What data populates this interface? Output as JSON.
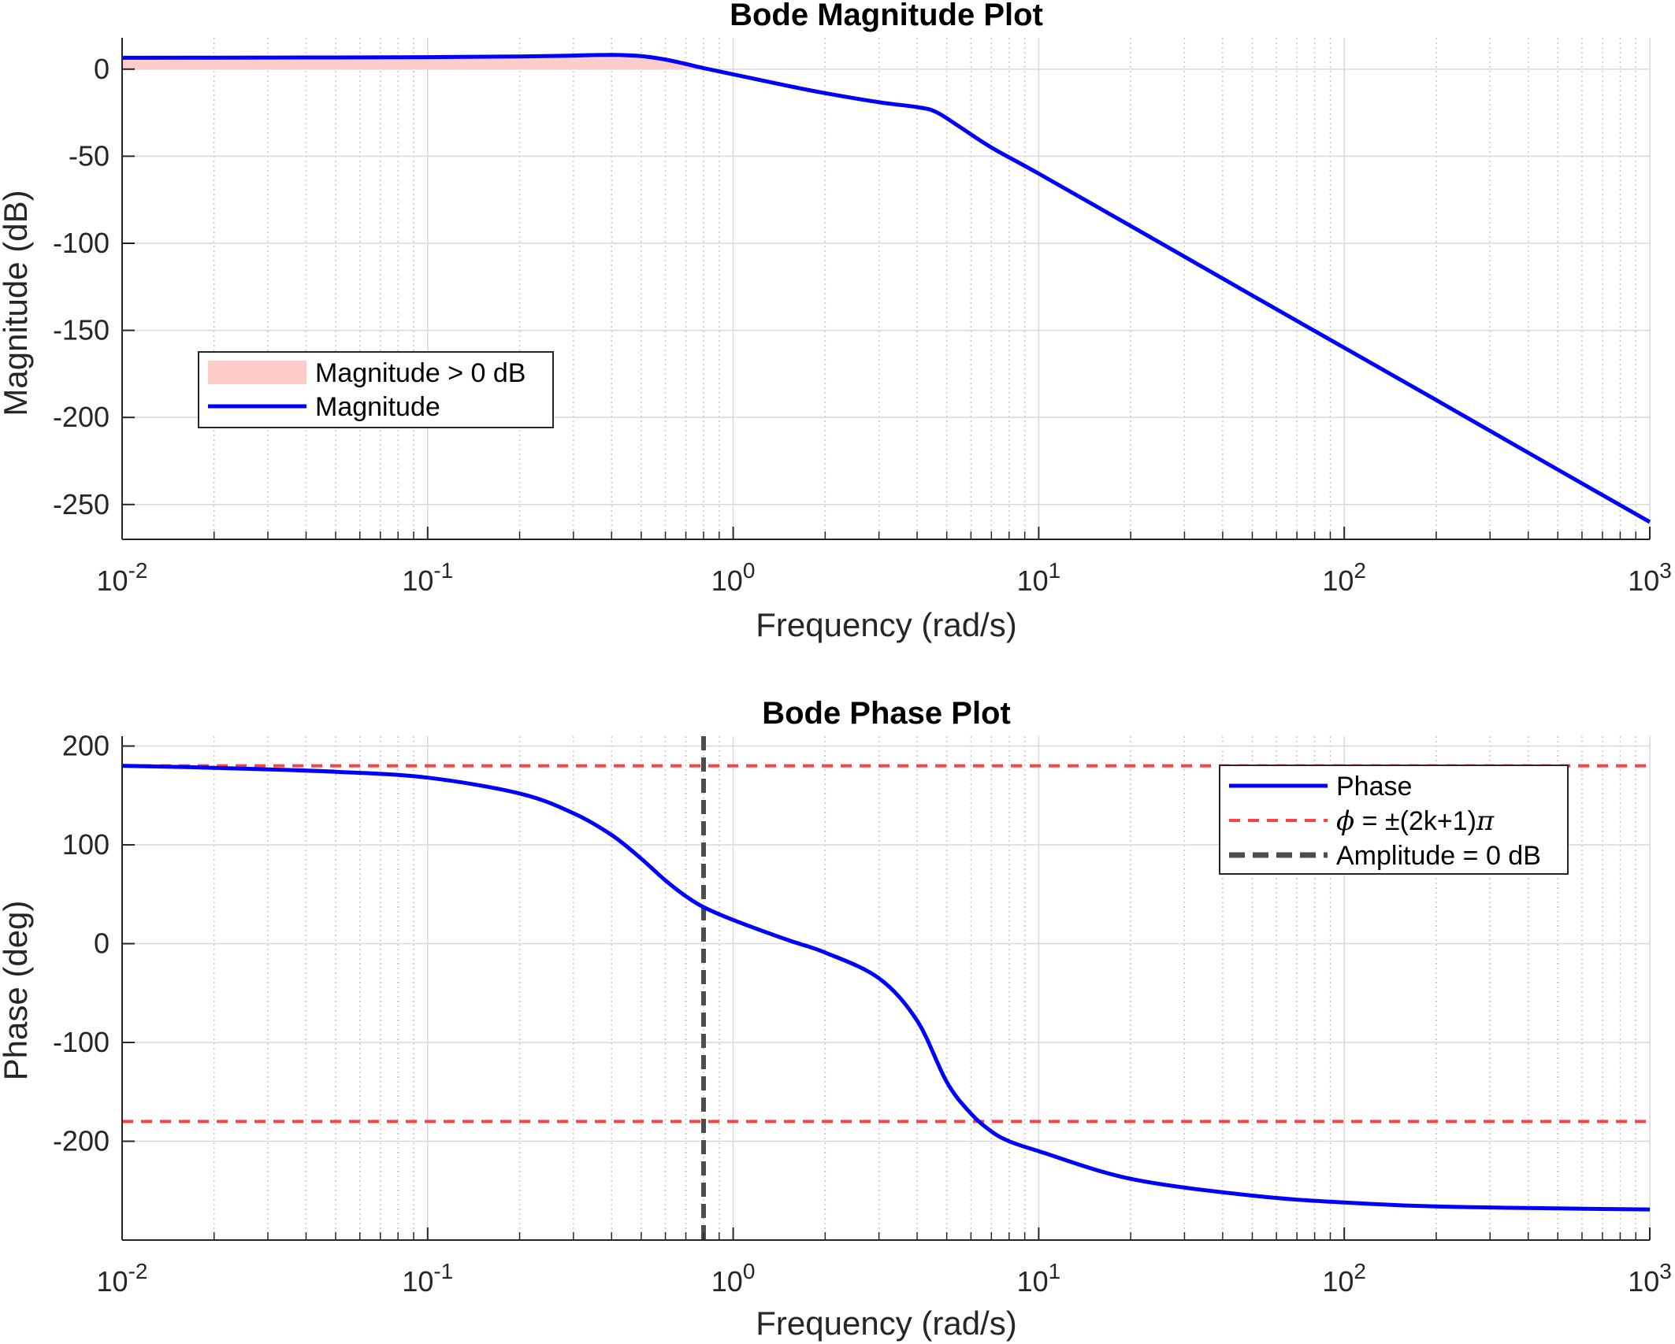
{
  "chart_data": [
    {
      "type": "line",
      "title": "Bode Magnitude Plot",
      "xlabel": "Frequency (rad/s)",
      "ylabel": "Magnitude (dB)",
      "xscale": "log",
      "xlim": [
        0.01,
        1000
      ],
      "ylim": [
        -270,
        18
      ],
      "xticks": [
        0.01,
        0.1,
        1,
        10,
        100,
        1000
      ],
      "yticks": [
        0,
        -50,
        -100,
        -150,
        -200,
        -250
      ],
      "grid": true,
      "legend": {
        "placement": "left-middle",
        "entries": [
          "Magnitude > 0 dB",
          "Magnitude"
        ]
      },
      "series": [
        {
          "name": "Magnitude",
          "color": "#0000ff",
          "x": [
            0.01,
            0.02,
            0.05,
            0.1,
            0.2,
            0.3,
            0.4,
            0.5,
            0.6,
            0.7,
            0.8,
            1.0,
            1.5,
            2.0,
            3.0,
            4.0,
            4.6,
            5.5,
            7.0,
            10.0,
            20.0,
            50.0,
            100.0,
            200.0,
            500.0,
            1000.0
          ],
          "y": [
            6.5,
            6.6,
            6.7,
            6.9,
            7.3,
            7.8,
            8.2,
            7.5,
            5.5,
            3.0,
            0.6,
            -3.0,
            -9.5,
            -13.8,
            -19.0,
            -21.8,
            -24.5,
            -33.0,
            -45.0,
            -60.0,
            -90.0,
            -130.0,
            -160.0,
            -190.0,
            -230.0,
            -260.0
          ]
        },
        {
          "name": "Magnitude > 0 dB",
          "color": "#ffcccc",
          "fill": "area between curve and 0 dB where magnitude > 0"
        }
      ]
    },
    {
      "type": "line",
      "title": "Bode Phase Plot",
      "xlabel": "Frequency (rad/s)",
      "ylabel": "Phase (deg)",
      "xscale": "log",
      "xlim": [
        0.01,
        1000
      ],
      "ylim": [
        -300,
        210
      ],
      "xticks": [
        0.01,
        0.1,
        1,
        10,
        100,
        1000
      ],
      "yticks": [
        200,
        100,
        0,
        -100,
        -200
      ],
      "grid": true,
      "legend": {
        "placement": "top-right",
        "entries": [
          "Phase",
          "ϕ = ±(2k+1)π",
          "Amplitude = 0 dB"
        ]
      },
      "series": [
        {
          "name": "Phase",
          "color": "#0000ff",
          "x": [
            0.01,
            0.02,
            0.05,
            0.1,
            0.2,
            0.3,
            0.4,
            0.5,
            0.6,
            0.7,
            0.8,
            1.0,
            1.5,
            2.0,
            3.0,
            4.0,
            5.0,
            6.0,
            7.0,
            8.0,
            10.0,
            20.0,
            50.0,
            100.0,
            200.0,
            500.0,
            1000.0
          ],
          "y": [
            180,
            178,
            174,
            168,
            152,
            132,
            110,
            86,
            64,
            48,
            37,
            24,
            4,
            -9,
            -35,
            -78,
            -140,
            -172,
            -190,
            -200,
            -210,
            -238,
            -255,
            -262,
            -266,
            -268,
            -269
          ]
        },
        {
          "name": "ϕ = ±(2k+1)π",
          "color": "#ff4040",
          "style": "dashed",
          "hlines": [
            180,
            -180
          ]
        },
        {
          "name": "Amplitude = 0 dB",
          "color": "#4d4d4d",
          "style": "dashed",
          "vline": 0.8
        }
      ]
    }
  ],
  "ui": {
    "xtick_labels": [
      {
        "base": "10",
        "exp": "-2"
      },
      {
        "base": "10",
        "exp": "-1"
      },
      {
        "base": "10",
        "exp": "0"
      },
      {
        "base": "10",
        "exp": "1"
      },
      {
        "base": "10",
        "exp": "2"
      },
      {
        "base": "10",
        "exp": "3"
      }
    ],
    "mag_ytick_labels": [
      "0",
      "-50",
      "-100",
      "-150",
      "-200",
      "-250"
    ],
    "phase_ytick_labels": [
      "200",
      "100",
      "0",
      "-100",
      "-200"
    ],
    "phase_legend_phi": "ϕ",
    "phase_legend_phi_rest": " = ±(2k+1)",
    "phase_legend_pi": "π"
  }
}
